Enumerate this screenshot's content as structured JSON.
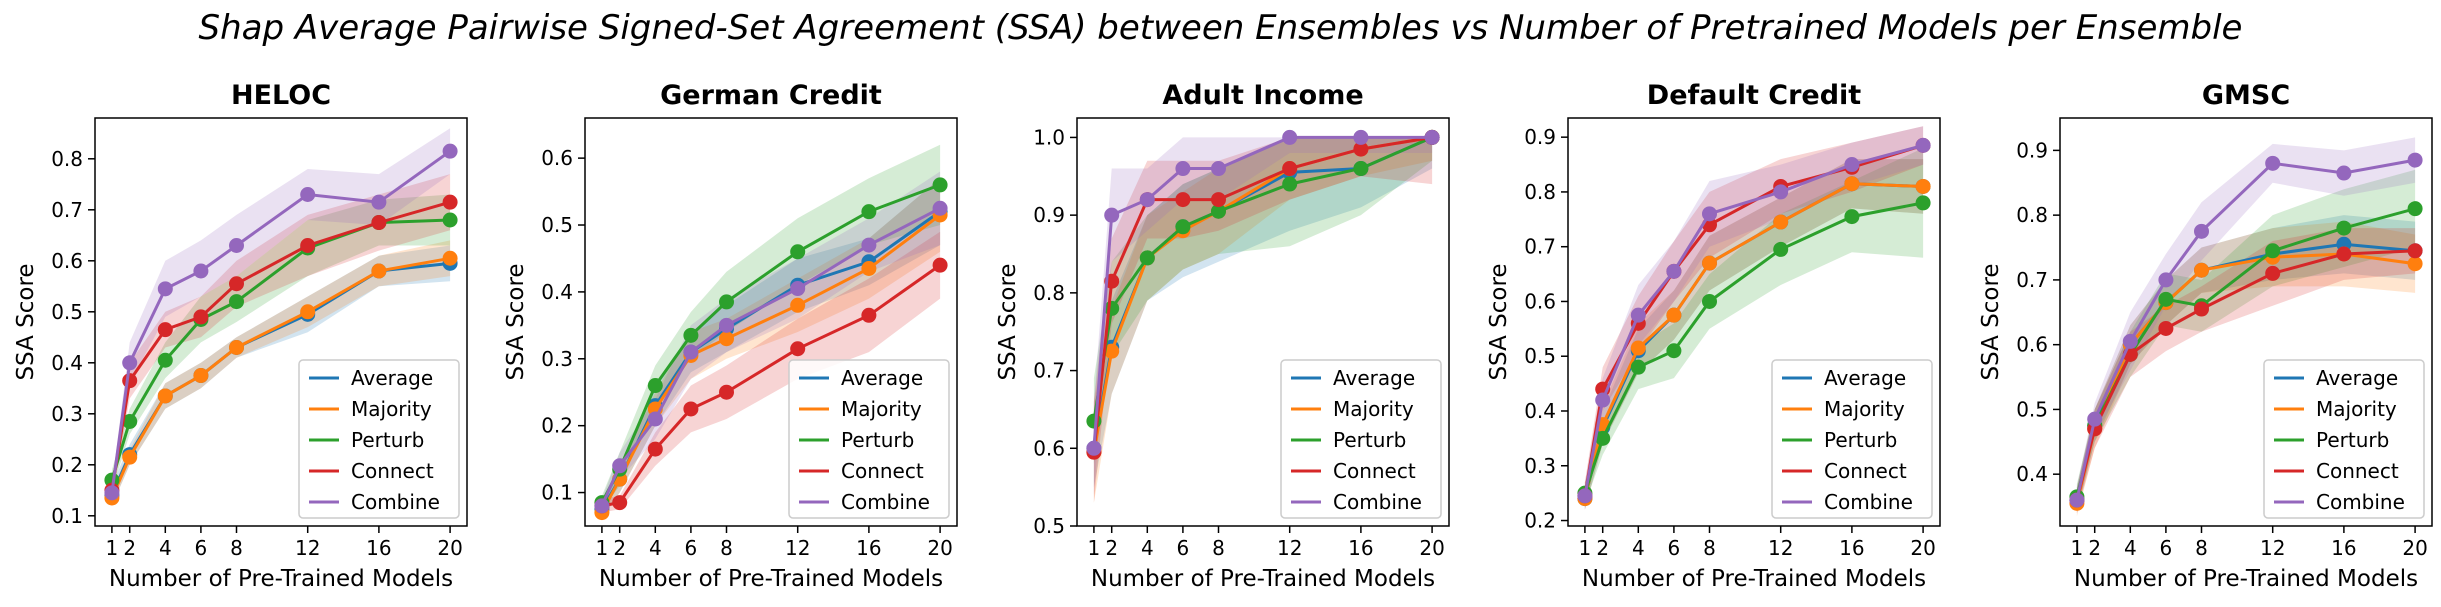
{
  "figure": {
    "suptitle": "Shap Average Pairwise Signed-Set Agreement (SSA) between Ensembles vs Number of Pretrained Models per Ensemble"
  },
  "chart_data": [
    {
      "type": "line",
      "title": "HELOC",
      "xlabel": "Number of Pre-Trained Models",
      "ylabel": "SSA Score",
      "x": [
        1,
        2,
        4,
        6,
        8,
        12,
        16,
        20
      ],
      "xticks": [
        1,
        2,
        4,
        6,
        8,
        12,
        16,
        20
      ],
      "ylim": [
        0.08,
        0.88
      ],
      "yticks": [
        0.1,
        0.2,
        0.3,
        0.4,
        0.5,
        0.6,
        0.7,
        0.8
      ],
      "legend_location": "lower right",
      "series": [
        {
          "name": "Average",
          "color": "#1f77b4",
          "values": [
            0.14,
            0.22,
            0.335,
            0.375,
            0.43,
            0.495,
            0.58,
            0.595
          ],
          "lower": [
            0.12,
            0.2,
            0.31,
            0.35,
            0.41,
            0.46,
            0.55,
            0.56
          ],
          "upper": [
            0.16,
            0.24,
            0.36,
            0.4,
            0.45,
            0.53,
            0.61,
            0.63
          ]
        },
        {
          "name": "Majority",
          "color": "#ff7f0e",
          "values": [
            0.135,
            0.215,
            0.335,
            0.375,
            0.43,
            0.5,
            0.58,
            0.605
          ],
          "lower": [
            0.12,
            0.2,
            0.31,
            0.35,
            0.41,
            0.47,
            0.55,
            0.57
          ],
          "upper": [
            0.15,
            0.23,
            0.36,
            0.4,
            0.45,
            0.53,
            0.61,
            0.64
          ]
        },
        {
          "name": "Perturb",
          "color": "#2ca02c",
          "values": [
            0.17,
            0.285,
            0.405,
            0.485,
            0.52,
            0.625,
            0.675,
            0.68
          ],
          "lower": [
            0.15,
            0.26,
            0.37,
            0.44,
            0.48,
            0.57,
            0.63,
            0.63
          ],
          "upper": [
            0.19,
            0.31,
            0.44,
            0.53,
            0.57,
            0.68,
            0.72,
            0.73
          ]
        },
        {
          "name": "Connect",
          "color": "#d62728",
          "values": [
            0.15,
            0.365,
            0.465,
            0.49,
            0.555,
            0.63,
            0.675,
            0.715
          ],
          "lower": [
            0.13,
            0.33,
            0.43,
            0.45,
            0.51,
            0.57,
            0.62,
            0.66
          ],
          "upper": [
            0.17,
            0.4,
            0.5,
            0.53,
            0.6,
            0.69,
            0.73,
            0.77
          ]
        },
        {
          "name": "Combine",
          "color": "#9467bd",
          "values": [
            0.145,
            0.4,
            0.545,
            0.58,
            0.63,
            0.73,
            0.715,
            0.815
          ],
          "lower": [
            0.13,
            0.36,
            0.49,
            0.53,
            0.57,
            0.68,
            0.67,
            0.77
          ],
          "upper": [
            0.16,
            0.44,
            0.6,
            0.64,
            0.69,
            0.78,
            0.77,
            0.86
          ]
        }
      ]
    },
    {
      "type": "line",
      "title": "German Credit",
      "xlabel": "Number of Pre-Trained Models",
      "ylabel": "SSA Score",
      "x": [
        1,
        2,
        4,
        6,
        8,
        12,
        16,
        20
      ],
      "xticks": [
        1,
        2,
        4,
        6,
        8,
        12,
        16,
        20
      ],
      "ylim": [
        0.05,
        0.66
      ],
      "yticks": [
        0.1,
        0.2,
        0.3,
        0.4,
        0.5,
        0.6
      ],
      "legend_location": "lower right",
      "series": [
        {
          "name": "Average",
          "color": "#1f77b4",
          "values": [
            0.075,
            0.12,
            0.23,
            0.31,
            0.345,
            0.41,
            0.445,
            0.52
          ],
          "lower": [
            0.065,
            0.1,
            0.2,
            0.28,
            0.31,
            0.37,
            0.41,
            0.47
          ],
          "upper": [
            0.085,
            0.14,
            0.26,
            0.34,
            0.38,
            0.45,
            0.48,
            0.57
          ]
        },
        {
          "name": "Majority",
          "color": "#ff7f0e",
          "values": [
            0.07,
            0.12,
            0.225,
            0.305,
            0.33,
            0.38,
            0.435,
            0.515
          ],
          "lower": [
            0.06,
            0.1,
            0.2,
            0.27,
            0.3,
            0.34,
            0.39,
            0.46
          ],
          "upper": [
            0.08,
            0.14,
            0.25,
            0.34,
            0.36,
            0.42,
            0.48,
            0.57
          ]
        },
        {
          "name": "Perturb",
          "color": "#2ca02c",
          "values": [
            0.085,
            0.135,
            0.26,
            0.335,
            0.385,
            0.46,
            0.52,
            0.56
          ],
          "lower": [
            0.075,
            0.11,
            0.23,
            0.3,
            0.34,
            0.41,
            0.47,
            0.5
          ],
          "upper": [
            0.095,
            0.16,
            0.29,
            0.37,
            0.43,
            0.51,
            0.57,
            0.62
          ]
        },
        {
          "name": "Connect",
          "color": "#d62728",
          "values": [
            0.08,
            0.085,
            0.165,
            0.225,
            0.25,
            0.315,
            0.365,
            0.44
          ],
          "lower": [
            0.07,
            0.075,
            0.14,
            0.19,
            0.21,
            0.27,
            0.31,
            0.39
          ],
          "upper": [
            0.09,
            0.095,
            0.19,
            0.26,
            0.29,
            0.36,
            0.42,
            0.49
          ]
        },
        {
          "name": "Combine",
          "color": "#9467bd",
          "values": [
            0.08,
            0.14,
            0.21,
            0.31,
            0.35,
            0.405,
            0.47,
            0.525
          ],
          "lower": [
            0.07,
            0.12,
            0.18,
            0.27,
            0.31,
            0.36,
            0.43,
            0.47
          ],
          "upper": [
            0.09,
            0.16,
            0.24,
            0.35,
            0.39,
            0.45,
            0.51,
            0.58
          ]
        }
      ]
    },
    {
      "type": "line",
      "title": "Adult Income",
      "xlabel": "Number of Pre-Trained Models",
      "ylabel": "SSA Score",
      "x": [
        1,
        2,
        4,
        6,
        8,
        12,
        16,
        20
      ],
      "xticks": [
        1,
        2,
        4,
        6,
        8,
        12,
        16,
        20
      ],
      "ylim": [
        0.5,
        1.025
      ],
      "yticks": [
        0.5,
        0.6,
        0.7,
        0.8,
        0.9,
        1.0
      ],
      "legend_location": "lower right",
      "series": [
        {
          "name": "Average",
          "color": "#1f77b4",
          "values": [
            0.6,
            0.73,
            0.845,
            0.885,
            0.905,
            0.955,
            0.96,
            1.0
          ],
          "lower": [
            0.55,
            0.67,
            0.79,
            0.82,
            0.84,
            0.88,
            0.91,
            0.96
          ],
          "upper": [
            0.65,
            0.79,
            0.9,
            0.94,
            0.96,
            1.0,
            1.0,
            1.0
          ]
        },
        {
          "name": "Majority",
          "color": "#ff7f0e",
          "values": [
            0.595,
            0.725,
            0.845,
            0.88,
            0.905,
            0.96,
            0.985,
            1.0
          ],
          "lower": [
            0.53,
            0.67,
            0.79,
            0.83,
            0.85,
            0.92,
            0.95,
            0.97
          ],
          "upper": [
            0.66,
            0.78,
            0.9,
            0.93,
            0.96,
            1.0,
            1.0,
            1.0
          ]
        },
        {
          "name": "Perturb",
          "color": "#2ca02c",
          "values": [
            0.635,
            0.78,
            0.845,
            0.885,
            0.905,
            0.94,
            0.96,
            1.0
          ],
          "lower": [
            0.58,
            0.72,
            0.79,
            0.83,
            0.85,
            0.86,
            0.9,
            0.97
          ],
          "upper": [
            0.69,
            0.84,
            0.9,
            0.94,
            0.96,
            1.0,
            1.0,
            1.0
          ]
        },
        {
          "name": "Connect",
          "color": "#d62728",
          "values": [
            0.595,
            0.815,
            0.92,
            0.92,
            0.92,
            0.96,
            0.985,
            1.0
          ],
          "lower": [
            0.53,
            0.76,
            0.87,
            0.87,
            0.88,
            0.92,
            0.95,
            0.94
          ],
          "upper": [
            0.66,
            0.87,
            0.97,
            0.97,
            0.97,
            1.0,
            1.0,
            1.0
          ]
        },
        {
          "name": "Combine",
          "color": "#9467bd",
          "values": [
            0.6,
            0.9,
            0.92,
            0.96,
            0.96,
            1.0,
            1.0,
            1.0
          ],
          "lower": [
            0.54,
            0.84,
            0.88,
            0.92,
            0.92,
            0.98,
            0.98,
            0.98
          ],
          "upper": [
            0.66,
            0.96,
            0.96,
            1.0,
            1.0,
            1.0,
            1.0,
            1.0
          ]
        }
      ]
    },
    {
      "type": "line",
      "title": "Default Credit",
      "xlabel": "Number of Pre-Trained Models",
      "ylabel": "SSA Score",
      "x": [
        1,
        2,
        4,
        6,
        8,
        12,
        16,
        20
      ],
      "xticks": [
        1,
        2,
        4,
        6,
        8,
        12,
        16,
        20
      ],
      "ylim": [
        0.19,
        0.935
      ],
      "yticks": [
        0.2,
        0.3,
        0.4,
        0.5,
        0.6,
        0.7,
        0.8,
        0.9
      ],
      "legend_location": "lower right",
      "series": [
        {
          "name": "Average",
          "color": "#1f77b4",
          "values": [
            0.24,
            0.37,
            0.51,
            0.575,
            0.67,
            0.745,
            0.815,
            0.81
          ],
          "lower": [
            0.22,
            0.34,
            0.47,
            0.53,
            0.62,
            0.7,
            0.77,
            0.76
          ],
          "upper": [
            0.26,
            0.4,
            0.55,
            0.62,
            0.72,
            0.79,
            0.86,
            0.86
          ]
        },
        {
          "name": "Majority",
          "color": "#ff7f0e",
          "values": [
            0.24,
            0.375,
            0.515,
            0.575,
            0.67,
            0.745,
            0.815,
            0.81
          ],
          "lower": [
            0.22,
            0.34,
            0.47,
            0.53,
            0.62,
            0.7,
            0.77,
            0.76
          ],
          "upper": [
            0.26,
            0.41,
            0.56,
            0.62,
            0.72,
            0.79,
            0.86,
            0.86
          ]
        },
        {
          "name": "Perturb",
          "color": "#2ca02c",
          "values": [
            0.25,
            0.35,
            0.48,
            0.51,
            0.6,
            0.695,
            0.755,
            0.78
          ],
          "lower": [
            0.23,
            0.32,
            0.44,
            0.46,
            0.55,
            0.63,
            0.69,
            0.68
          ],
          "upper": [
            0.27,
            0.38,
            0.52,
            0.56,
            0.65,
            0.76,
            0.82,
            0.88
          ]
        },
        {
          "name": "Connect",
          "color": "#d62728",
          "values": [
            0.245,
            0.44,
            0.56,
            0.655,
            0.74,
            0.81,
            0.845,
            0.885
          ],
          "lower": [
            0.22,
            0.4,
            0.51,
            0.6,
            0.68,
            0.76,
            0.8,
            0.85
          ],
          "upper": [
            0.27,
            0.48,
            0.61,
            0.71,
            0.8,
            0.86,
            0.89,
            0.92
          ]
        },
        {
          "name": "Combine",
          "color": "#9467bd",
          "values": [
            0.245,
            0.42,
            0.575,
            0.655,
            0.76,
            0.8,
            0.85,
            0.885
          ],
          "lower": [
            0.22,
            0.38,
            0.52,
            0.6,
            0.7,
            0.75,
            0.81,
            0.85
          ],
          "upper": [
            0.27,
            0.46,
            0.63,
            0.71,
            0.82,
            0.85,
            0.89,
            0.92
          ]
        }
      ]
    },
    {
      "type": "line",
      "title": "GMSC",
      "xlabel": "Number of Pre-Trained Models",
      "ylabel": "SSA Score",
      "x": [
        1,
        2,
        4,
        6,
        8,
        12,
        16,
        20
      ],
      "xticks": [
        1,
        2,
        4,
        6,
        8,
        12,
        16,
        20
      ],
      "ylim": [
        0.32,
        0.95
      ],
      "yticks": [
        0.4,
        0.5,
        0.6,
        0.7,
        0.8,
        0.9
      ],
      "legend_location": "lower right",
      "series": [
        {
          "name": "Average",
          "color": "#1f77b4",
          "values": [
            0.36,
            0.475,
            0.6,
            0.665,
            0.715,
            0.74,
            0.755,
            0.745
          ],
          "lower": [
            0.34,
            0.45,
            0.57,
            0.63,
            0.68,
            0.7,
            0.71,
            0.7
          ],
          "upper": [
            0.38,
            0.5,
            0.63,
            0.7,
            0.75,
            0.78,
            0.8,
            0.79
          ]
        },
        {
          "name": "Majority",
          "color": "#ff7f0e",
          "values": [
            0.355,
            0.47,
            0.6,
            0.665,
            0.715,
            0.735,
            0.74,
            0.725
          ],
          "lower": [
            0.335,
            0.44,
            0.57,
            0.63,
            0.68,
            0.69,
            0.69,
            0.68
          ],
          "upper": [
            0.375,
            0.5,
            0.63,
            0.7,
            0.75,
            0.78,
            0.79,
            0.77
          ]
        },
        {
          "name": "Perturb",
          "color": "#2ca02c",
          "values": [
            0.365,
            0.475,
            0.585,
            0.67,
            0.66,
            0.745,
            0.78,
            0.81
          ],
          "lower": [
            0.345,
            0.45,
            0.55,
            0.63,
            0.62,
            0.69,
            0.72,
            0.75
          ],
          "upper": [
            0.385,
            0.5,
            0.62,
            0.71,
            0.7,
            0.8,
            0.84,
            0.87
          ]
        },
        {
          "name": "Connect",
          "color": "#d62728",
          "values": [
            0.36,
            0.47,
            0.585,
            0.625,
            0.655,
            0.71,
            0.74,
            0.745
          ],
          "lower": [
            0.34,
            0.44,
            0.55,
            0.59,
            0.62,
            0.66,
            0.7,
            0.71
          ],
          "upper": [
            0.38,
            0.5,
            0.62,
            0.66,
            0.69,
            0.76,
            0.78,
            0.78
          ]
        },
        {
          "name": "Combine",
          "color": "#9467bd",
          "values": [
            0.36,
            0.485,
            0.605,
            0.7,
            0.775,
            0.88,
            0.865,
            0.885
          ],
          "lower": [
            0.34,
            0.46,
            0.56,
            0.66,
            0.73,
            0.85,
            0.83,
            0.85
          ],
          "upper": [
            0.38,
            0.51,
            0.65,
            0.74,
            0.82,
            0.91,
            0.9,
            0.92
          ]
        }
      ]
    }
  ]
}
